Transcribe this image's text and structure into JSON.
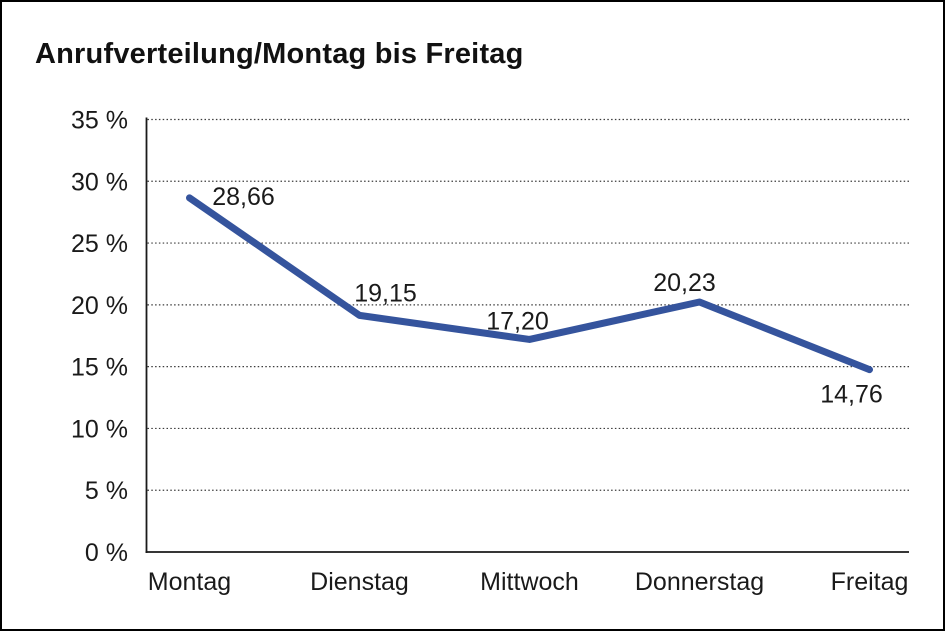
{
  "title": "Anrufverteilung/Montag bis Freitag",
  "chart_data": {
    "type": "line",
    "title": "Anrufverteilung/Montag bis Freitag",
    "categories": [
      "Montag",
      "Dienstag",
      "Mittwoch",
      "Donnerstag",
      "Freitag"
    ],
    "series": [
      {
        "name": "Anrufverteilung",
        "values": [
          28.66,
          19.15,
          17.2,
          20.23,
          14.76
        ],
        "value_labels": [
          "28,66",
          "19,15",
          "17,20",
          "20,23",
          "14,76"
        ]
      }
    ],
    "xlabel": "",
    "ylabel": "",
    "ylim": [
      0,
      35
    ],
    "ytick_step": 5,
    "ytick_labels": [
      "0 %",
      "5 %",
      "10 %",
      "15 %",
      "20 %",
      "25 %",
      "30 %",
      "35 %"
    ],
    "grid": "horizontal-dotted",
    "legend_position": "none",
    "colors": {
      "line": "#35549d",
      "axis": "#1a1a1a",
      "gridline": "#3c3c3c",
      "label_text": "#1a1a1a",
      "background": "#ffffff",
      "border": "#000000"
    }
  }
}
